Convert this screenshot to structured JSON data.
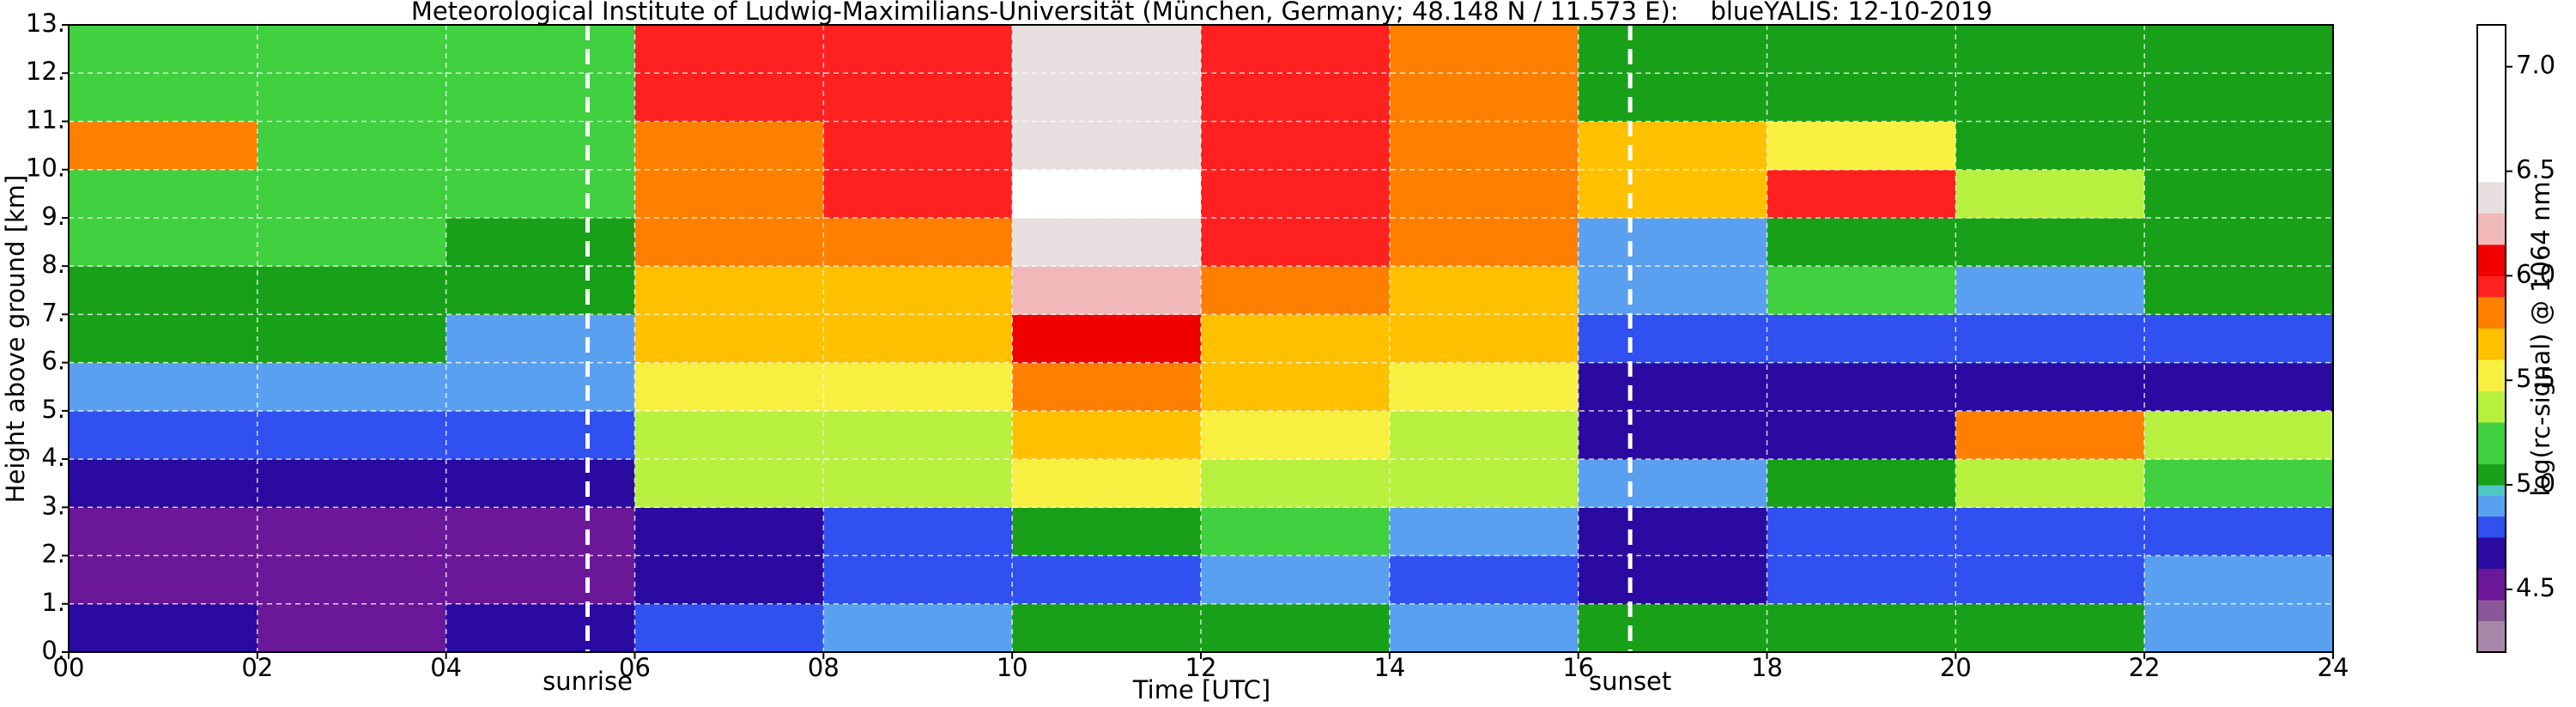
{
  "chart_data": {
    "type": "heatmap",
    "title": "Meteorological Institute of Ludwig-Maximilians-Universität (München, Germany; 48.148 N / 11.573 E):    blueYALIS: 12-10-2019",
    "xlabel": "Time [UTC]",
    "ylabel": "Height above ground [km]",
    "colorbar_label": "log(rc-signal) @ 1064 nm",
    "xlim": [
      0,
      24
    ],
    "ylim": [
      0,
      13
    ],
    "clim": [
      4.2,
      7.2
    ],
    "xticks": [
      {
        "value": 0,
        "label": "00"
      },
      {
        "value": 2,
        "label": "02"
      },
      {
        "value": 4,
        "label": "04"
      },
      {
        "value": 6,
        "label": "06"
      },
      {
        "value": 8,
        "label": "08"
      },
      10,
      12,
      14,
      16,
      18,
      20,
      22,
      24
    ],
    "yticks": [
      {
        "value": 0,
        "label": "0."
      },
      {
        "value": 1,
        "label": "1."
      },
      {
        "value": 2,
        "label": "2."
      },
      {
        "value": 3,
        "label": "3."
      },
      {
        "value": 4,
        "label": "4."
      },
      {
        "value": 5,
        "label": "5."
      },
      {
        "value": 6,
        "label": "6."
      },
      {
        "value": 7,
        "label": "7."
      },
      {
        "value": 8,
        "label": "8."
      },
      {
        "value": 9,
        "label": "9."
      },
      {
        "value": 10,
        "label": "10."
      },
      {
        "value": 11,
        "label": "11."
      },
      {
        "value": 12,
        "label": "12."
      },
      {
        "value": 13,
        "label": "13."
      }
    ],
    "cticks": [
      4.5,
      {
        "value": 5,
        "label": "5.0"
      },
      5.5,
      {
        "value": 6,
        "label": "6.0"
      },
      6.5,
      {
        "value": 7,
        "label": "7.0"
      }
    ],
    "grid": true,
    "xbins": [
      0,
      2,
      4,
      6,
      8,
      10,
      12,
      14,
      16,
      18,
      20,
      22,
      24
    ],
    "ybins": [
      0,
      1,
      2,
      3,
      4,
      5,
      6,
      7,
      8,
      9,
      10,
      11,
      12,
      13
    ],
    "z": [
      [
        4.7,
        4.5,
        4.7,
        4.8,
        4.9,
        5.0,
        5.0,
        4.9,
        5.0,
        5.0,
        5.0,
        4.9
      ],
      [
        4.5,
        4.45,
        4.45,
        4.6,
        4.8,
        4.8,
        4.9,
        4.8,
        4.7,
        4.75,
        4.8,
        4.9
      ],
      [
        4.5,
        4.5,
        4.5,
        4.7,
        4.8,
        5.0,
        5.1,
        4.9,
        4.7,
        4.75,
        4.8,
        4.8
      ],
      [
        4.7,
        4.7,
        4.7,
        5.3,
        5.3,
        5.5,
        5.4,
        5.3,
        4.9,
        5.0,
        5.3,
        5.1
      ],
      [
        4.8,
        4.8,
        4.8,
        5.4,
        5.4,
        5.6,
        5.5,
        5.4,
        4.6,
        4.6,
        5.8,
        5.4
      ],
      [
        4.9,
        4.9,
        4.9,
        5.5,
        5.5,
        5.8,
        5.6,
        5.5,
        4.7,
        4.7,
        4.7,
        4.7
      ],
      [
        5.0,
        5.0,
        4.9,
        5.6,
        5.6,
        6.0,
        5.7,
        5.6,
        4.8,
        4.8,
        4.8,
        4.8
      ],
      [
        5.0,
        5.0,
        5.0,
        5.7,
        5.7,
        6.2,
        5.8,
        5.7,
        4.9,
        5.2,
        4.9,
        5.0
      ],
      [
        5.1,
        5.1,
        5.0,
        5.8,
        5.8,
        6.4,
        5.9,
        5.8,
        4.9,
        5.0,
        5.0,
        5.0
      ],
      [
        5.1,
        5.1,
        5.1,
        5.8,
        5.9,
        6.5,
        5.9,
        5.8,
        5.6,
        5.9,
        5.3,
        5.0
      ],
      [
        5.8,
        5.1,
        5.1,
        5.8,
        5.9,
        6.4,
        5.9,
        5.8,
        5.6,
        5.5,
        5.0,
        5.0
      ],
      [
        5.2,
        5.1,
        5.1,
        5.9,
        5.9,
        6.3,
        5.9,
        5.8,
        5.0,
        5.0,
        5.0,
        5.0
      ],
      [
        5.2,
        5.2,
        5.1,
        5.9,
        5.9,
        6.3,
        5.9,
        5.8,
        5.0,
        5.0,
        5.0,
        5.0
      ]
    ],
    "colormap": [
      {
        "value": 4.2,
        "color": "#a888a8"
      },
      {
        "value": 4.35,
        "color": "#8a5898"
      },
      {
        "value": 4.45,
        "color": "#6a1898"
      },
      {
        "value": 4.6,
        "color": "#2a0aa0"
      },
      {
        "value": 4.75,
        "color": "#3050f0"
      },
      {
        "value": 4.85,
        "color": "#5aa0f0"
      },
      {
        "value": 4.95,
        "color": "#50c8c8"
      },
      {
        "value": 5.0,
        "color": "#18a018"
      },
      {
        "value": 5.1,
        "color": "#40d040"
      },
      {
        "value": 5.3,
        "color": "#b8f040"
      },
      {
        "value": 5.45,
        "color": "#f8f040"
      },
      {
        "value": 5.6,
        "color": "#ffc000"
      },
      {
        "value": 5.75,
        "color": "#ff8000"
      },
      {
        "value": 5.9,
        "color": "#ff2020"
      },
      {
        "value": 6.0,
        "color": "#f00000"
      },
      {
        "value": 6.15,
        "color": "#f0b8b8"
      },
      {
        "value": 6.3,
        "color": "#e8e0e0"
      },
      {
        "value": 6.45,
        "color": "#ffffff"
      }
    ],
    "events": [
      {
        "label": "sunrise",
        "x": 5.5
      },
      {
        "label": "sunset",
        "x": 16.55
      }
    ]
  }
}
